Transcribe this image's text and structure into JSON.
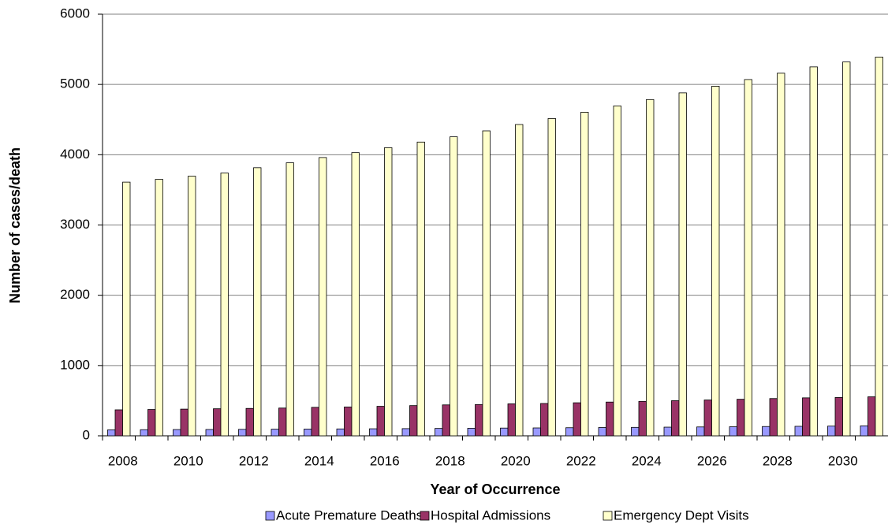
{
  "chart_data": {
    "type": "bar",
    "x_label": "Year of Occurrence",
    "y_label": "Number of cases/death",
    "categories": [
      "2008",
      null,
      "2010",
      null,
      "2012",
      null,
      "2014",
      null,
      "2016",
      null,
      "2018",
      null,
      "2020",
      null,
      "2022",
      null,
      "2024",
      null,
      "2026",
      null,
      "2028",
      null,
      "2030",
      null
    ],
    "series": [
      {
        "name": "Acute Premature Deaths",
        "color": "#9999ff",
        "values": [
          85,
          87,
          89,
          90,
          92,
          94,
          96,
          98,
          100,
          102,
          105,
          107,
          110,
          112,
          115,
          118,
          120,
          123,
          126,
          129,
          132,
          135,
          138,
          142
        ]
      },
      {
        "name": "Hospital Admissions",
        "color": "#993366",
        "values": [
          370,
          375,
          380,
          385,
          390,
          395,
          405,
          410,
          420,
          430,
          440,
          445,
          455,
          460,
          470,
          480,
          490,
          500,
          510,
          520,
          530,
          540,
          545,
          555
        ]
      },
      {
        "name": "Emergency Dept Visits",
        "color": "#ffffcc",
        "values": [
          3610,
          3650,
          3695,
          3740,
          3815,
          3885,
          3960,
          4030,
          4100,
          4180,
          4255,
          4340,
          4430,
          4515,
          4605,
          4695,
          4785,
          4880,
          4975,
          5070,
          5160,
          5250,
          5320,
          5390
        ]
      }
    ],
    "ylim": [
      0,
      6000
    ],
    "yticks": [
      0,
      1000,
      2000,
      3000,
      4000,
      5000,
      6000
    ],
    "grid": true,
    "legend": "bottom"
  }
}
